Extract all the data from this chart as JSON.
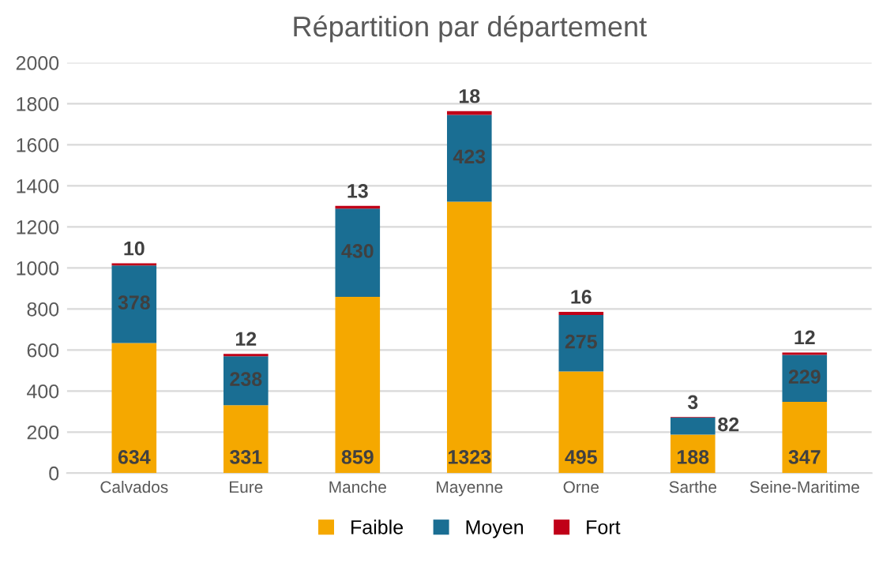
{
  "chart_data": {
    "type": "bar",
    "title": "Répartition par département",
    "stacked": true,
    "categories": [
      "Calvados",
      "Eure",
      "Manche",
      "Mayenne",
      "Orne",
      "Sarthe",
      "Seine-Maritime"
    ],
    "series": [
      {
        "name": "Faible",
        "color": "#f5a800",
        "values": [
          634,
          331,
          859,
          1323,
          495,
          188,
          347
        ]
      },
      {
        "name": "Moyen",
        "color": "#1a6e93",
        "values": [
          378,
          238,
          430,
          423,
          275,
          82,
          229
        ]
      },
      {
        "name": "Fort",
        "color": "#c00018",
        "values": [
          10,
          12,
          13,
          18,
          16,
          3,
          12
        ]
      }
    ],
    "ylim": [
      0,
      2000
    ],
    "yticks": [
      0,
      200,
      400,
      600,
      800,
      1000,
      1200,
      1400,
      1600,
      1800,
      2000
    ],
    "grid": "y",
    "legend": "bottom",
    "data_labels": true
  }
}
